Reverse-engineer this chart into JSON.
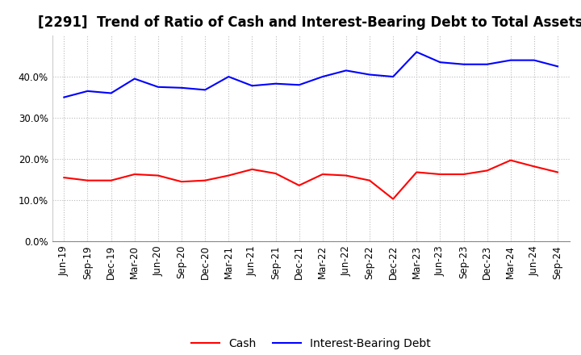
{
  "title": "[2291]  Trend of Ratio of Cash and Interest-Bearing Debt to Total Assets",
  "x_labels": [
    "Jun-19",
    "Sep-19",
    "Dec-19",
    "Mar-20",
    "Jun-20",
    "Sep-20",
    "Dec-20",
    "Mar-21",
    "Jun-21",
    "Sep-21",
    "Dec-21",
    "Mar-22",
    "Jun-22",
    "Sep-22",
    "Dec-22",
    "Mar-23",
    "Jun-23",
    "Sep-23",
    "Dec-23",
    "Mar-24",
    "Jun-24",
    "Sep-24"
  ],
  "cash": [
    0.155,
    0.148,
    0.148,
    0.163,
    0.16,
    0.145,
    0.148,
    0.16,
    0.175,
    0.165,
    0.136,
    0.163,
    0.16,
    0.148,
    0.103,
    0.168,
    0.163,
    0.163,
    0.172,
    0.197,
    0.182,
    0.168
  ],
  "interest_bearing_debt": [
    0.35,
    0.365,
    0.36,
    0.395,
    0.375,
    0.373,
    0.368,
    0.4,
    0.378,
    0.383,
    0.38,
    0.4,
    0.415,
    0.405,
    0.4,
    0.46,
    0.435,
    0.43,
    0.43,
    0.44,
    0.44,
    0.425
  ],
  "cash_color": "#ff0000",
  "debt_color": "#0000ff",
  "background_color": "#ffffff",
  "plot_bg_color": "#ffffff",
  "grid_color": "#bbbbbb",
  "ylim": [
    0.0,
    0.5
  ],
  "yticks": [
    0.0,
    0.1,
    0.2,
    0.3,
    0.4
  ],
  "legend_cash": "Cash",
  "legend_debt": "Interest-Bearing Debt",
  "title_fontsize": 12,
  "axis_fontsize": 8.5,
  "legend_fontsize": 10
}
